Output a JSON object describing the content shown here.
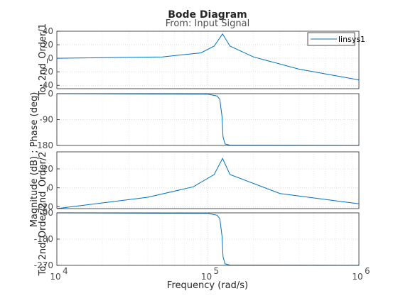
{
  "chart_data": {
    "type": "line",
    "title": "Bode Diagram",
    "subtitle": "From: Input Signal",
    "xlabel": "Frequency  (rad/s)",
    "ylabel": "Magnitude (dB) ; Phase (deg)",
    "x_scale": "log",
    "xlim": [
      10000,
      1000000
    ],
    "x_tick_labels": [
      {
        "value": 10000,
        "base": "10",
        "exp": "4"
      },
      {
        "value": 100000,
        "base": "10",
        "exp": "5"
      },
      {
        "value": 1000000,
        "base": "10",
        "exp": "6"
      }
    ],
    "series_color": "#0072BD",
    "legend": {
      "entries": [
        "linsys1"
      ],
      "placement": "top-right"
    },
    "grid": true,
    "panels": [
      {
        "id": "mag1",
        "row_label": "To: 2nd_Order/1",
        "ylim": [
          -45,
          40
        ],
        "yticks": [
          40,
          20,
          0,
          -20,
          -40
        ],
        "x": [
          10000,
          50000,
          90000,
          110000,
          125000,
          140000,
          200000,
          400000,
          1000000
        ],
        "y": [
          0,
          2,
          8,
          18,
          36,
          18,
          2,
          -16,
          -32
        ]
      },
      {
        "id": "phase1",
        "row_label": "",
        "ylim": [
          -180,
          0
        ],
        "yticks": [
          0,
          -90,
          -180
        ],
        "x": [
          10000,
          100000,
          115000,
          120000,
          124000,
          126000,
          130000,
          140000,
          1000000
        ],
        "y": [
          0,
          -2,
          -8,
          -20,
          -80,
          -150,
          -175,
          -179,
          -180
        ]
      },
      {
        "id": "mag2",
        "row_label": "2nd_Order/2",
        "ylim": [
          -22,
          38
        ],
        "yticks": [
          20,
          0,
          -20
        ],
        "x": [
          10000,
          40000,
          80000,
          110000,
          125000,
          140000,
          300000,
          1000000
        ],
        "y": [
          -22,
          -10,
          1,
          14,
          31,
          14,
          -6,
          -17
        ]
      },
      {
        "id": "phase2",
        "row_label": "To: 2nd_Order/2",
        "ylim": [
          -270,
          -90
        ],
        "yticks": [
          -90,
          -180,
          -270
        ],
        "x": [
          10000,
          100000,
          115000,
          120000,
          124000,
          126000,
          130000,
          140000,
          1000000
        ],
        "y": [
          -90,
          -92,
          -98,
          -110,
          -170,
          -240,
          -265,
          -269,
          -270
        ]
      }
    ]
  }
}
